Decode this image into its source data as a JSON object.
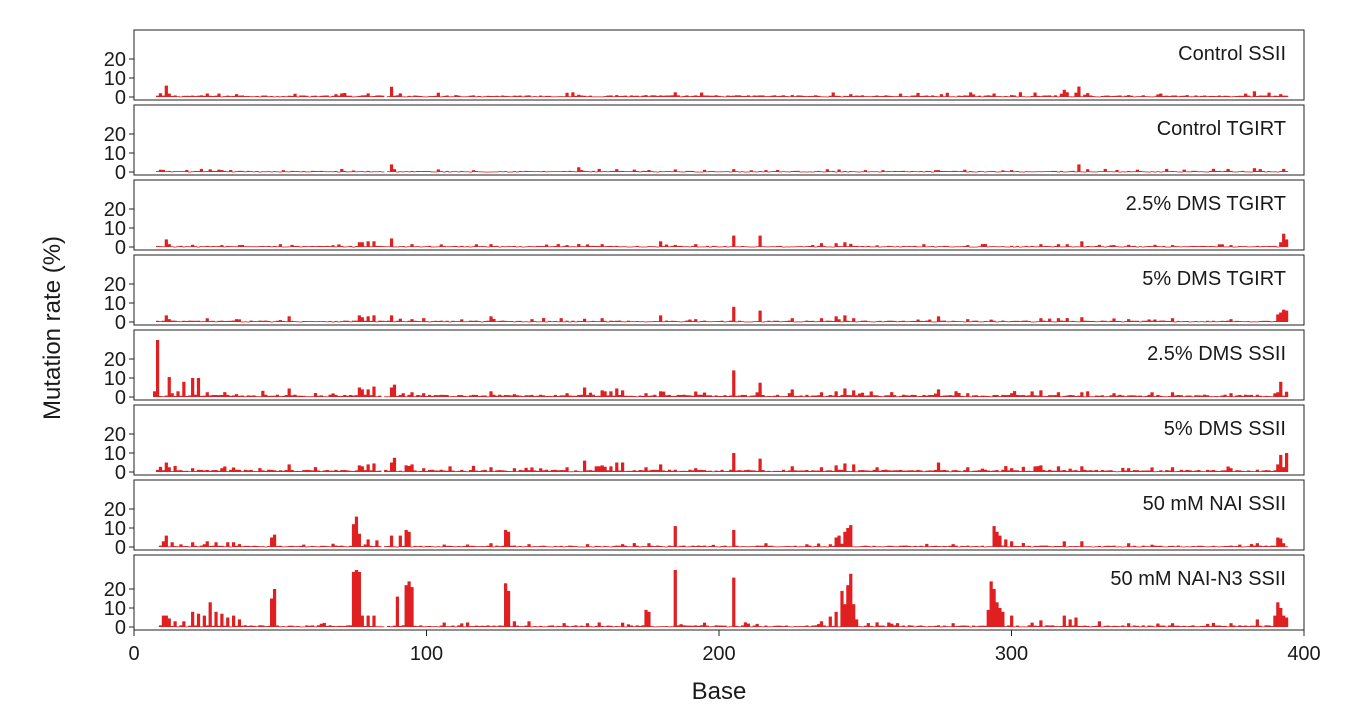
{
  "chart_data": {
    "type": "bar",
    "xlabel": "Base",
    "ylabel": "Mutation rate (%)",
    "xlim": [
      0,
      400
    ],
    "xticks": [
      0,
      100,
      200,
      300,
      400
    ],
    "ylim": [
      0,
      30
    ],
    "yticks": [
      0,
      10,
      20
    ],
    "bar_color": "#e02020",
    "grid": false,
    "panels": [
      {
        "label": "Control SSII",
        "baseline": 0.6,
        "range": [
          8,
          394
        ],
        "gap": [
          85,
          87
        ],
        "peaks": [
          [
            11,
            6
          ],
          [
            12,
            1.8
          ],
          [
            88,
            5.4
          ],
          [
            110,
            1
          ],
          [
            152,
            1.2
          ],
          [
            165,
            1
          ],
          [
            175,
            1
          ],
          [
            225,
            1
          ],
          [
            245,
            1.5
          ],
          [
            300,
            1
          ],
          [
            318,
            3.8
          ],
          [
            319,
            2.5
          ],
          [
            323,
            5.5
          ],
          [
            325,
            1.2
          ],
          [
            340,
            1
          ],
          [
            360,
            1
          ],
          [
            383,
            3
          ],
          [
            392,
            1.5
          ]
        ]
      },
      {
        "label": "Control TGIRT",
        "baseline": 0.4,
        "range": [
          8,
          394
        ],
        "gap": [
          85,
          87
        ],
        "peaks": [
          [
            9,
            1.2
          ],
          [
            30,
            1
          ],
          [
            75,
            0.8
          ],
          [
            88,
            4
          ],
          [
            89,
            1.5
          ],
          [
            152,
            2.5
          ],
          [
            165,
            1.5
          ],
          [
            205,
            1.5
          ],
          [
            216,
            1
          ],
          [
            275,
            1
          ],
          [
            300,
            1
          ],
          [
            323,
            4
          ],
          [
            383,
            2
          ]
        ]
      },
      {
        "label": "2.5% DMS TGIRT",
        "baseline": 0.4,
        "range": [
          8,
          394
        ],
        "peaks": [
          [
            11,
            4
          ],
          [
            12,
            1.5
          ],
          [
            30,
            1
          ],
          [
            36,
            1
          ],
          [
            50,
            1.5
          ],
          [
            77,
            2.5
          ],
          [
            78,
            2.5
          ],
          [
            80,
            3
          ],
          [
            82,
            3
          ],
          [
            88,
            4.5
          ],
          [
            95,
            1.5
          ],
          [
            122,
            1.5
          ],
          [
            148,
            1
          ],
          [
            160,
            1.5
          ],
          [
            180,
            3
          ],
          [
            192,
            1.5
          ],
          [
            205,
            6
          ],
          [
            214,
            6
          ],
          [
            235,
            2
          ],
          [
            240,
            2
          ],
          [
            243,
            2.5
          ],
          [
            270,
            1.5
          ],
          [
            285,
            1
          ],
          [
            310,
            1.5
          ],
          [
            316,
            1.5
          ],
          [
            324,
            3
          ],
          [
            335,
            1
          ],
          [
            355,
            1
          ],
          [
            375,
            1
          ],
          [
            392,
            2.5
          ],
          [
            393,
            7
          ],
          [
            394,
            4
          ]
        ]
      },
      {
        "label": "5% DMS TGIRT",
        "baseline": 0.5,
        "range": [
          8,
          394
        ],
        "peaks": [
          [
            11,
            3.5
          ],
          [
            12,
            1.5
          ],
          [
            35,
            1.5
          ],
          [
            50,
            1
          ],
          [
            53,
            3
          ],
          [
            77,
            3.5
          ],
          [
            78,
            2.5
          ],
          [
            80,
            3
          ],
          [
            82,
            3.5
          ],
          [
            88,
            3.5
          ],
          [
            95,
            1.5
          ],
          [
            122,
            3
          ],
          [
            136,
            1.5
          ],
          [
            146,
            2
          ],
          [
            160,
            2
          ],
          [
            180,
            3.5
          ],
          [
            192,
            1.5
          ],
          [
            205,
            8
          ],
          [
            214,
            6
          ],
          [
            225,
            2
          ],
          [
            235,
            2
          ],
          [
            240,
            3
          ],
          [
            243,
            3.5
          ],
          [
            246,
            2
          ],
          [
            275,
            3
          ],
          [
            285,
            1.5
          ],
          [
            310,
            2
          ],
          [
            316,
            2
          ],
          [
            324,
            2.5
          ],
          [
            340,
            1.5
          ],
          [
            355,
            2
          ],
          [
            375,
            1.5
          ],
          [
            391,
            4
          ],
          [
            392,
            5
          ],
          [
            393,
            6.5
          ],
          [
            394,
            6
          ]
        ]
      },
      {
        "label": "2.5% DMS SSII",
        "baseline": 0.8,
        "range": [
          7,
          394
        ],
        "gap": [
          84,
          86
        ],
        "peaks": [
          [
            7,
            3
          ],
          [
            8,
            30
          ],
          [
            12,
            10.5
          ],
          [
            13,
            2
          ],
          [
            15,
            3
          ],
          [
            17,
            8
          ],
          [
            20,
            10
          ],
          [
            22,
            10
          ],
          [
            25,
            2.5
          ],
          [
            35,
            1.5
          ],
          [
            53,
            4.5
          ],
          [
            77,
            5
          ],
          [
            78,
            4
          ],
          [
            80,
            4
          ],
          [
            82,
            5.5
          ],
          [
            88,
            5
          ],
          [
            89,
            6.5
          ],
          [
            92,
            2
          ],
          [
            95,
            2.5
          ],
          [
            99,
            2
          ],
          [
            122,
            3
          ],
          [
            130,
            1.5
          ],
          [
            148,
            2
          ],
          [
            154,
            5
          ],
          [
            160,
            3.5
          ],
          [
            163,
            3
          ],
          [
            165,
            4.5
          ],
          [
            167,
            3.5
          ],
          [
            175,
            2
          ],
          [
            180,
            3
          ],
          [
            205,
            14
          ],
          [
            214,
            7.5
          ],
          [
            225,
            4
          ],
          [
            235,
            2.5
          ],
          [
            240,
            3
          ],
          [
            243,
            4.5
          ],
          [
            246,
            3.5
          ],
          [
            275,
            4
          ],
          [
            285,
            2
          ],
          [
            300,
            2
          ],
          [
            310,
            3.5
          ],
          [
            316,
            2.5
          ],
          [
            324,
            2.5
          ],
          [
            335,
            2
          ],
          [
            355,
            2.5
          ],
          [
            375,
            2
          ],
          [
            391,
            2.5
          ],
          [
            392,
            8
          ]
        ]
      },
      {
        "label": "5% DMS SSII",
        "baseline": 0.8,
        "range": [
          8,
          394
        ],
        "gap": [
          84,
          86
        ],
        "peaks": [
          [
            11,
            5
          ],
          [
            12,
            2.5
          ],
          [
            20,
            2
          ],
          [
            30,
            2
          ],
          [
            53,
            4
          ],
          [
            77,
            3.5
          ],
          [
            78,
            3
          ],
          [
            80,
            4
          ],
          [
            82,
            4.5
          ],
          [
            88,
            5
          ],
          [
            89,
            7.5
          ],
          [
            93,
            3.5
          ],
          [
            95,
            4
          ],
          [
            99,
            2
          ],
          [
            122,
            2.5
          ],
          [
            130,
            2
          ],
          [
            148,
            2.5
          ],
          [
            154,
            6
          ],
          [
            158,
            3
          ],
          [
            160,
            3.5
          ],
          [
            163,
            3
          ],
          [
            165,
            5
          ],
          [
            167,
            5
          ],
          [
            175,
            2.5
          ],
          [
            180,
            4
          ],
          [
            192,
            2
          ],
          [
            205,
            10
          ],
          [
            214,
            7
          ],
          [
            225,
            3
          ],
          [
            235,
            2.5
          ],
          [
            240,
            3.5
          ],
          [
            243,
            4.5
          ],
          [
            246,
            4
          ],
          [
            275,
            5
          ],
          [
            285,
            2.5
          ],
          [
            300,
            2
          ],
          [
            310,
            3.5
          ],
          [
            316,
            3
          ],
          [
            324,
            3
          ],
          [
            340,
            2
          ],
          [
            355,
            2.5
          ],
          [
            375,
            2
          ],
          [
            391,
            4
          ],
          [
            392,
            9
          ],
          [
            394,
            10
          ]
        ]
      },
      {
        "label": "50 mM NAI SSII",
        "baseline": 0.5,
        "range": [
          9,
          394
        ],
        "gap": [
          84,
          86
        ],
        "peaks": [
          [
            10,
            3
          ],
          [
            11,
            6
          ],
          [
            13,
            2.5
          ],
          [
            20,
            2.5
          ],
          [
            25,
            3
          ],
          [
            28,
            2.5
          ],
          [
            32,
            2.5
          ],
          [
            34,
            2.5
          ],
          [
            47,
            5
          ],
          [
            48,
            6.5
          ],
          [
            75,
            12
          ],
          [
            76,
            16
          ],
          [
            77,
            7
          ],
          [
            80,
            4
          ],
          [
            83,
            3.5
          ],
          [
            88,
            6
          ],
          [
            91,
            6
          ],
          [
            93,
            9
          ],
          [
            94,
            8
          ],
          [
            122,
            2
          ],
          [
            127,
            9
          ],
          [
            128,
            8
          ],
          [
            135,
            1.5
          ],
          [
            155,
            1.5
          ],
          [
            167,
            1.5
          ],
          [
            176,
            2
          ],
          [
            185,
            11
          ],
          [
            205,
            9
          ],
          [
            216,
            2
          ],
          [
            240,
            5
          ],
          [
            241,
            6
          ],
          [
            243,
            8
          ],
          [
            244,
            10
          ],
          [
            245,
            11.5
          ],
          [
            280,
            1.5
          ],
          [
            294,
            11
          ],
          [
            295,
            8
          ],
          [
            296,
            6
          ],
          [
            298,
            4
          ],
          [
            300,
            3
          ],
          [
            318,
            3
          ],
          [
            324,
            3
          ],
          [
            340,
            2
          ],
          [
            384,
            2
          ],
          [
            391,
            5
          ],
          [
            392,
            4.5
          ],
          [
            393,
            2
          ]
        ]
      },
      {
        "label": "50 mM NAI-N3 SSII",
        "baseline": 0.6,
        "range": [
          9,
          394
        ],
        "gap": [
          85,
          87
        ],
        "peaks": [
          [
            10,
            6
          ],
          [
            11,
            6
          ],
          [
            12,
            4.5
          ],
          [
            14,
            3
          ],
          [
            17,
            3
          ],
          [
            20,
            8
          ],
          [
            22,
            7
          ],
          [
            24,
            6
          ],
          [
            26,
            13
          ],
          [
            28,
            8
          ],
          [
            30,
            7
          ],
          [
            32,
            5
          ],
          [
            34,
            6
          ],
          [
            36,
            4
          ],
          [
            47,
            15
          ],
          [
            48,
            20
          ],
          [
            75,
            29
          ],
          [
            76,
            30
          ],
          [
            77,
            29
          ],
          [
            78,
            6
          ],
          [
            80,
            6
          ],
          [
            82,
            6
          ],
          [
            90,
            16
          ],
          [
            93,
            22
          ],
          [
            94,
            24
          ],
          [
            95,
            21
          ],
          [
            127,
            23
          ],
          [
            128,
            19
          ],
          [
            130,
            3
          ],
          [
            135,
            3
          ],
          [
            155,
            2
          ],
          [
            175,
            9
          ],
          [
            176,
            8
          ],
          [
            185,
            30
          ],
          [
            205,
            26
          ],
          [
            235,
            3
          ],
          [
            238,
            5.5
          ],
          [
            240,
            8
          ],
          [
            242,
            19
          ],
          [
            243,
            12
          ],
          [
            244,
            22
          ],
          [
            245,
            28
          ],
          [
            246,
            12
          ],
          [
            247,
            4
          ],
          [
            280,
            2
          ],
          [
            292,
            9
          ],
          [
            293,
            24
          ],
          [
            294,
            20
          ],
          [
            295,
            13
          ],
          [
            296,
            10
          ],
          [
            297,
            8
          ],
          [
            300,
            6
          ],
          [
            310,
            3.5
          ],
          [
            318,
            6
          ],
          [
            320,
            4
          ],
          [
            322,
            5
          ],
          [
            330,
            3
          ],
          [
            340,
            2
          ],
          [
            355,
            2
          ],
          [
            375,
            2
          ],
          [
            384,
            4
          ],
          [
            390,
            6
          ],
          [
            391,
            13
          ],
          [
            392,
            10
          ],
          [
            393,
            6
          ],
          [
            394,
            5
          ]
        ]
      }
    ]
  }
}
